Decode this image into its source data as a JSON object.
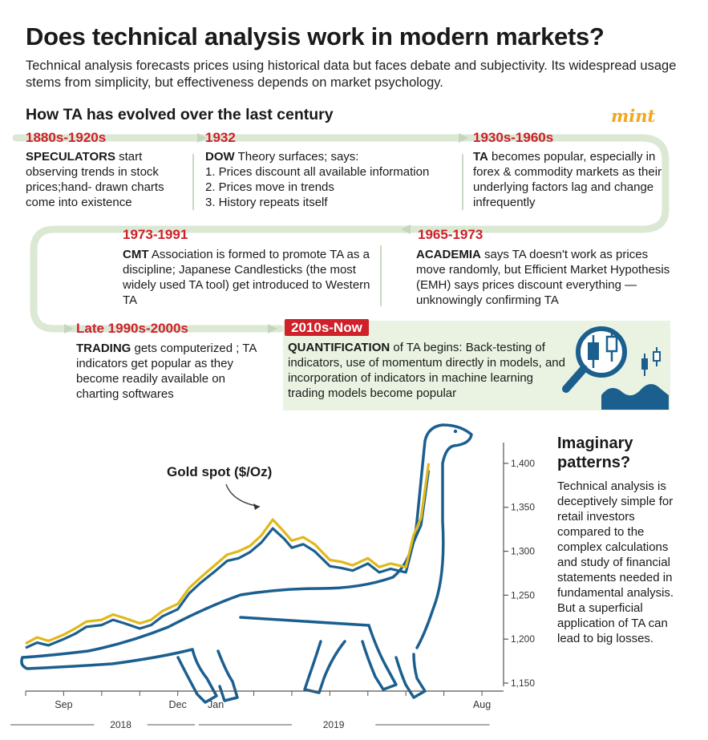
{
  "header": {
    "title": "Does technical analysis work in modern markets?",
    "subtitle": "Technical analysis forecasts prices using historical data but faces debate and subjectivity. Its widespread usage stems from simplicity, but effectiveness depends on market psychology.",
    "section": "How TA has evolved over the last century",
    "brand": "mint"
  },
  "timeline": [
    {
      "era": "1880s-1920s",
      "bold": "SPECULATORS",
      "text": " start observing trends in stock prices;hand- drawn charts come into existence"
    },
    {
      "era": "1932",
      "bold": "DOW",
      "text": " Theory surfaces; says:",
      "list": [
        "1. Prices discount all available information",
        "2. Prices move in trends",
        "3. History repeats itself"
      ]
    },
    {
      "era": "1930s-1960s",
      "bold": "TA",
      "text": " becomes popular, especially in forex & commodity markets as their underlying factors lag and change infrequently"
    },
    {
      "era": "1965-1973",
      "bold": "ACADEMIA",
      "text": " says TA doesn't work as prices move randomly, but Efficient Market Hypothesis (EMH) says prices discount everything —unknowingly confirming TA"
    },
    {
      "era": "1973-1991",
      "bold": "CMT",
      "text": " Association is formed to promote TA as a discipline; Japanese Candlesticks (the most widely used TA tool) get introduced to Western TA"
    },
    {
      "era": "Late 1990s-2000s",
      "bold": "TRADING",
      "text": " gets computerized ; TA indicators get popular as they become readily available on charting softwares"
    },
    {
      "era": "2010s-Now",
      "bold": "QUANTIFICATION",
      "text": " of TA begins: Back-testing of indicators, use of momentum directly in models, and incorporation of indicators in machine learning trading models become popular"
    }
  ],
  "sidebar": {
    "title": "Imaginary patterns?",
    "text": "Technical analysis is deceptively simple for retail investors compared to the complex calculations and study of financial statements needed in fundamental analysis. But a superficial application of TA can lead to big losses."
  },
  "colors": {
    "accent_red": "#d0202a",
    "gold_line": "#e0b81a",
    "blue_line": "#1b5f8f",
    "panel_green": "#eaf3e2",
    "brand": "#f2a71c"
  },
  "icons": [
    "candlestick-magnifier-icon"
  ],
  "chart_data": {
    "type": "line",
    "annotation": "Gold spot ($/Oz)",
    "ylim": [
      1150,
      1420
    ],
    "yticks": [
      1150,
      1200,
      1250,
      1300,
      1350,
      1400
    ],
    "ytick_labels": [
      "1,150",
      "1,200",
      "1,250",
      "1,300",
      "1,350",
      "1,400"
    ],
    "x_month_labels": [
      "Sep",
      "Dec",
      "Jan",
      "Aug"
    ],
    "x_month_positions": [
      1.0,
      4.0,
      5.0,
      12.0
    ],
    "x_year_labels": [
      "2018",
      "2019"
    ],
    "xlim": [
      0,
      12.4
    ],
    "series": [
      {
        "name": "",
        "color": "#e0b81a",
        "x": [
          0,
          0.3,
          0.6,
          1.0,
          1.3,
          1.6,
          2.0,
          2.3,
          2.6,
          3.0,
          3.3,
          3.6,
          4.0,
          4.3,
          4.6,
          5.0,
          5.3,
          5.6,
          5.9,
          6.2,
          6.5,
          6.8,
          7.0,
          7.3,
          7.6,
          8.0,
          8.3,
          8.6,
          9.0,
          9.3,
          9.6,
          10.0,
          10.2,
          10.4,
          10.6
        ],
        "y": [
          1195,
          1202,
          1198,
          1205,
          1212,
          1220,
          1222,
          1228,
          1224,
          1218,
          1222,
          1232,
          1240,
          1258,
          1270,
          1285,
          1296,
          1300,
          1306,
          1318,
          1336,
          1322,
          1312,
          1316,
          1308,
          1290,
          1288,
          1284,
          1292,
          1282,
          1286,
          1282,
          1318,
          1338,
          1400
        ]
      },
      {
        "name": "",
        "color": "#1b5f8f",
        "x": [
          0,
          0.3,
          0.6,
          1.0,
          1.3,
          1.6,
          2.0,
          2.3,
          2.6,
          3.0,
          3.3,
          3.6,
          4.0,
          4.3,
          4.6,
          5.0,
          5.3,
          5.6,
          5.9,
          6.2,
          6.5,
          6.8,
          7.0,
          7.3,
          7.6,
          8.0,
          8.3,
          8.6,
          9.0,
          9.3,
          9.6,
          10.0,
          10.2,
          10.4,
          10.6
        ],
        "y": [
          1190,
          1196,
          1193,
          1200,
          1206,
          1214,
          1216,
          1222,
          1218,
          1212,
          1216,
          1226,
          1234,
          1252,
          1264,
          1278,
          1289,
          1292,
          1299,
          1310,
          1326,
          1314,
          1304,
          1308,
          1300,
          1283,
          1281,
          1278,
          1286,
          1276,
          1280,
          1276,
          1310,
          1330,
          1392
        ]
      }
    ]
  }
}
